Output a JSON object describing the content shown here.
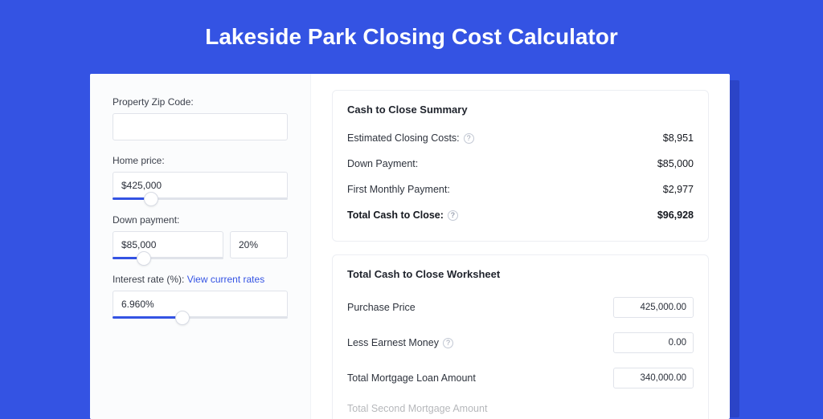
{
  "colors": {
    "page_bg": "#3453e3",
    "panel_bg": "#ffffff",
    "panel_shadow": "#2b44c7",
    "left_col_bg": "#fbfcfd",
    "border": "#e0e3ea",
    "card_border": "#eceef3",
    "text_primary": "#1f232c",
    "text_body": "#2e333d",
    "text_muted": "#9aa1b1",
    "link": "#3453e3",
    "slider_fill": "#3453e3",
    "slider_rail": "#e0e3ea"
  },
  "title": "Lakeside Park Closing Cost Calculator",
  "left": {
    "zip": {
      "label": "Property Zip Code:",
      "value": ""
    },
    "home_price": {
      "label": "Home price:",
      "value": "$425,000",
      "slider_pct": 22
    },
    "down_payment": {
      "label": "Down payment:",
      "value": "$85,000",
      "pct": "20%",
      "slider_pct": 28
    },
    "interest_rate": {
      "label_prefix": "Interest rate (%): ",
      "link_text": "View current rates",
      "value": "6.960%",
      "slider_pct": 40
    }
  },
  "summary": {
    "title": "Cash to Close Summary",
    "rows": [
      {
        "label": "Estimated Closing Costs:",
        "help": true,
        "value": "$8,951",
        "bold": false
      },
      {
        "label": "Down Payment:",
        "help": false,
        "value": "$85,000",
        "bold": false
      },
      {
        "label": "First Monthly Payment:",
        "help": false,
        "value": "$2,977",
        "bold": false
      },
      {
        "label": "Total Cash to Close:",
        "help": true,
        "value": "$96,928",
        "bold": true
      }
    ]
  },
  "worksheet": {
    "title": "Total Cash to Close Worksheet",
    "rows": [
      {
        "label": "Purchase Price",
        "help": false,
        "value": "425,000.00"
      },
      {
        "label": "Less Earnest Money",
        "help": true,
        "value": "0.00"
      },
      {
        "label": "Total Mortgage Loan Amount",
        "help": false,
        "value": "340,000.00"
      }
    ],
    "truncated_label": "Total Second Mortgage Amount"
  }
}
